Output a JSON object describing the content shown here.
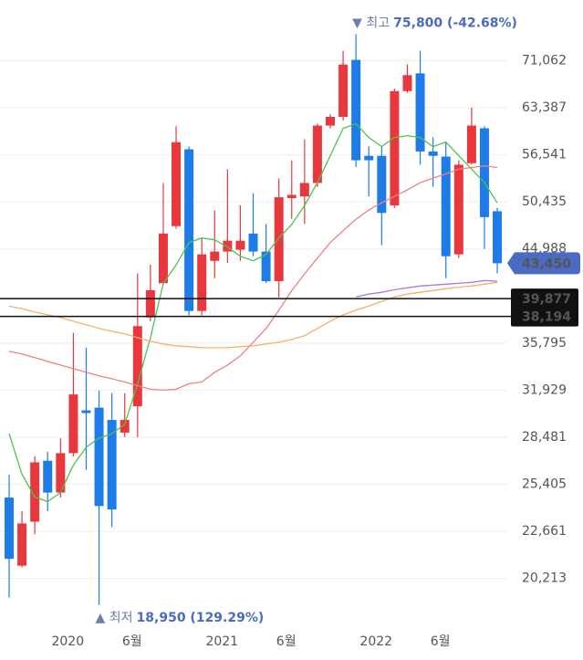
{
  "chart_data": {
    "type": "candlestick",
    "log_scale": true,
    "grid": true,
    "up_color": "#e8383d",
    "down_color": "#1e7ce8",
    "categories": [
      null,
      null,
      null,
      null,
      "2020",
      null,
      null,
      null,
      null,
      "6월",
      null,
      null,
      null,
      null,
      null,
      null,
      "2021",
      null,
      null,
      null,
      null,
      "6월",
      null,
      null,
      null,
      null,
      null,
      null,
      "2022",
      null,
      null,
      null,
      null,
      "6월",
      null,
      null,
      null,
      null,
      null
    ],
    "open": [
      24600,
      20850,
      23200,
      26900,
      24900,
      27400,
      30400,
      30600,
      29700,
      28800,
      30700,
      38100,
      41400,
      47550,
      57300,
      38700,
      43700,
      44700,
      44900,
      46700,
      44700,
      41600,
      50900,
      51100,
      52800,
      60700,
      62000,
      71200,
      56400,
      56400,
      50000,
      66000,
      68900,
      57000,
      56300,
      44400,
      55400,
      60300,
      49300
    ],
    "high": [
      26000,
      23800,
      27200,
      27500,
      28400,
      36700,
      35400,
      31900,
      31700,
      31700,
      42400,
      43300,
      52800,
      60600,
      57700,
      46200,
      49400,
      54600,
      50000,
      51500,
      47800,
      53400,
      55800,
      58700,
      61000,
      62400,
      72800,
      75800,
      57700,
      57700,
      66400,
      70400,
      72800,
      59000,
      58300,
      55800,
      63400,
      60600,
      49700
    ],
    "low": [
      19300,
      20760,
      22500,
      23800,
      24600,
      27200,
      26300,
      18950,
      22900,
      28500,
      28500,
      37750,
      41200,
      47250,
      38300,
      38300,
      41900,
      43500,
      43700,
      44200,
      41400,
      40000,
      48400,
      47800,
      52300,
      60300,
      61450,
      54900,
      51100,
      45400,
      49700,
      65700,
      55200,
      52300,
      41900,
      44000,
      55200,
      45000,
      42400
    ],
    "close": [
      21200,
      23100,
      26800,
      24900,
      27400,
      31600,
      30200,
      24100,
      23900,
      29700,
      37300,
      40700,
      46700,
      58300,
      38700,
      44400,
      44700,
      45900,
      45900,
      44700,
      41600,
      51000,
      51300,
      52800,
      60700,
      62000,
      70400,
      55800,
      55800,
      49100,
      66000,
      68600,
      57000,
      56400,
      44200,
      55200,
      60700,
      48600,
      43450
    ],
    "moving_averages": [
      {
        "color": "#4cc44c",
        "values": [
          28730,
          26030,
          24630,
          24360,
          24900,
          26610,
          27800,
          28420,
          28730,
          29380,
          32430,
          36270,
          41390,
          43270,
          45690,
          46200,
          46000,
          45190,
          44200,
          43710,
          44390,
          46200,
          47760,
          50000,
          52840,
          56420,
          60290,
          60960,
          58970,
          57680,
          58970,
          59230,
          58970,
          57680,
          58320,
          56420,
          54620,
          52840,
          50320
        ]
      },
      {
        "color": "#f08080",
        "values": [
          35090,
          34860,
          34550,
          34240,
          33940,
          33640,
          33350,
          33050,
          32830,
          32570,
          32280,
          32000,
          31930,
          32000,
          32430,
          32570,
          33350,
          33940,
          34700,
          35870,
          37090,
          38770,
          40660,
          42350,
          44000,
          45690,
          47030,
          48360,
          49440,
          50320,
          51110,
          51910,
          52840,
          53430,
          53970,
          54620,
          54820,
          55060,
          54820
        ]
      },
      {
        "color": "#f5b06a",
        "values": [
          39160,
          38900,
          38590,
          38340,
          38090,
          37750,
          37420,
          37090,
          36840,
          36600,
          36270,
          35950,
          35720,
          35560,
          35480,
          35400,
          35400,
          35400,
          35480,
          35560,
          35720,
          35870,
          36110,
          36440,
          37090,
          37750,
          38340,
          38770,
          39160,
          39600,
          40040,
          40310,
          40490,
          40660,
          40850,
          41000,
          41120,
          41300,
          41480
        ]
      },
      {
        "color": "#b07be0",
        "values": [
          null,
          null,
          null,
          null,
          null,
          null,
          null,
          null,
          null,
          null,
          null,
          null,
          null,
          null,
          null,
          null,
          null,
          null,
          null,
          null,
          null,
          null,
          null,
          null,
          null,
          null,
          null,
          40040,
          40310,
          40490,
          40750,
          40940,
          41120,
          41210,
          41300,
          41390,
          41480,
          41670,
          41590
        ]
      }
    ],
    "ylim": [
      18000,
      80000
    ],
    "yticks": [
      {
        "value": 20213,
        "label": "20,213"
      },
      {
        "value": 22661,
        "label": "22,661"
      },
      {
        "value": 25405,
        "label": "25,405"
      },
      {
        "value": 28481,
        "label": "28,481"
      },
      {
        "value": 31929,
        "label": "31,929"
      },
      {
        "value": 35795,
        "label": "35,795"
      },
      {
        "value": 44988,
        "label": "44,988"
      },
      {
        "value": 50435,
        "label": "50,435"
      },
      {
        "value": 56541,
        "label": "56,541"
      },
      {
        "value": 63387,
        "label": "63,387"
      },
      {
        "value": 71062,
        "label": "71,062"
      }
    ],
    "levels": [
      {
        "value": 39877,
        "label": "39,877"
      },
      {
        "value": 38194,
        "label": "38,194"
      }
    ],
    "last_price": {
      "value": 43450,
      "label": "43,450",
      "color": "#4a6bbf"
    },
    "high_note": {
      "label": "▼ 최고",
      "detail": "75,800 (-42.68%)"
    },
    "low_note": {
      "label": "▲ 최저",
      "detail": "18,950 (129.29%)"
    }
  }
}
